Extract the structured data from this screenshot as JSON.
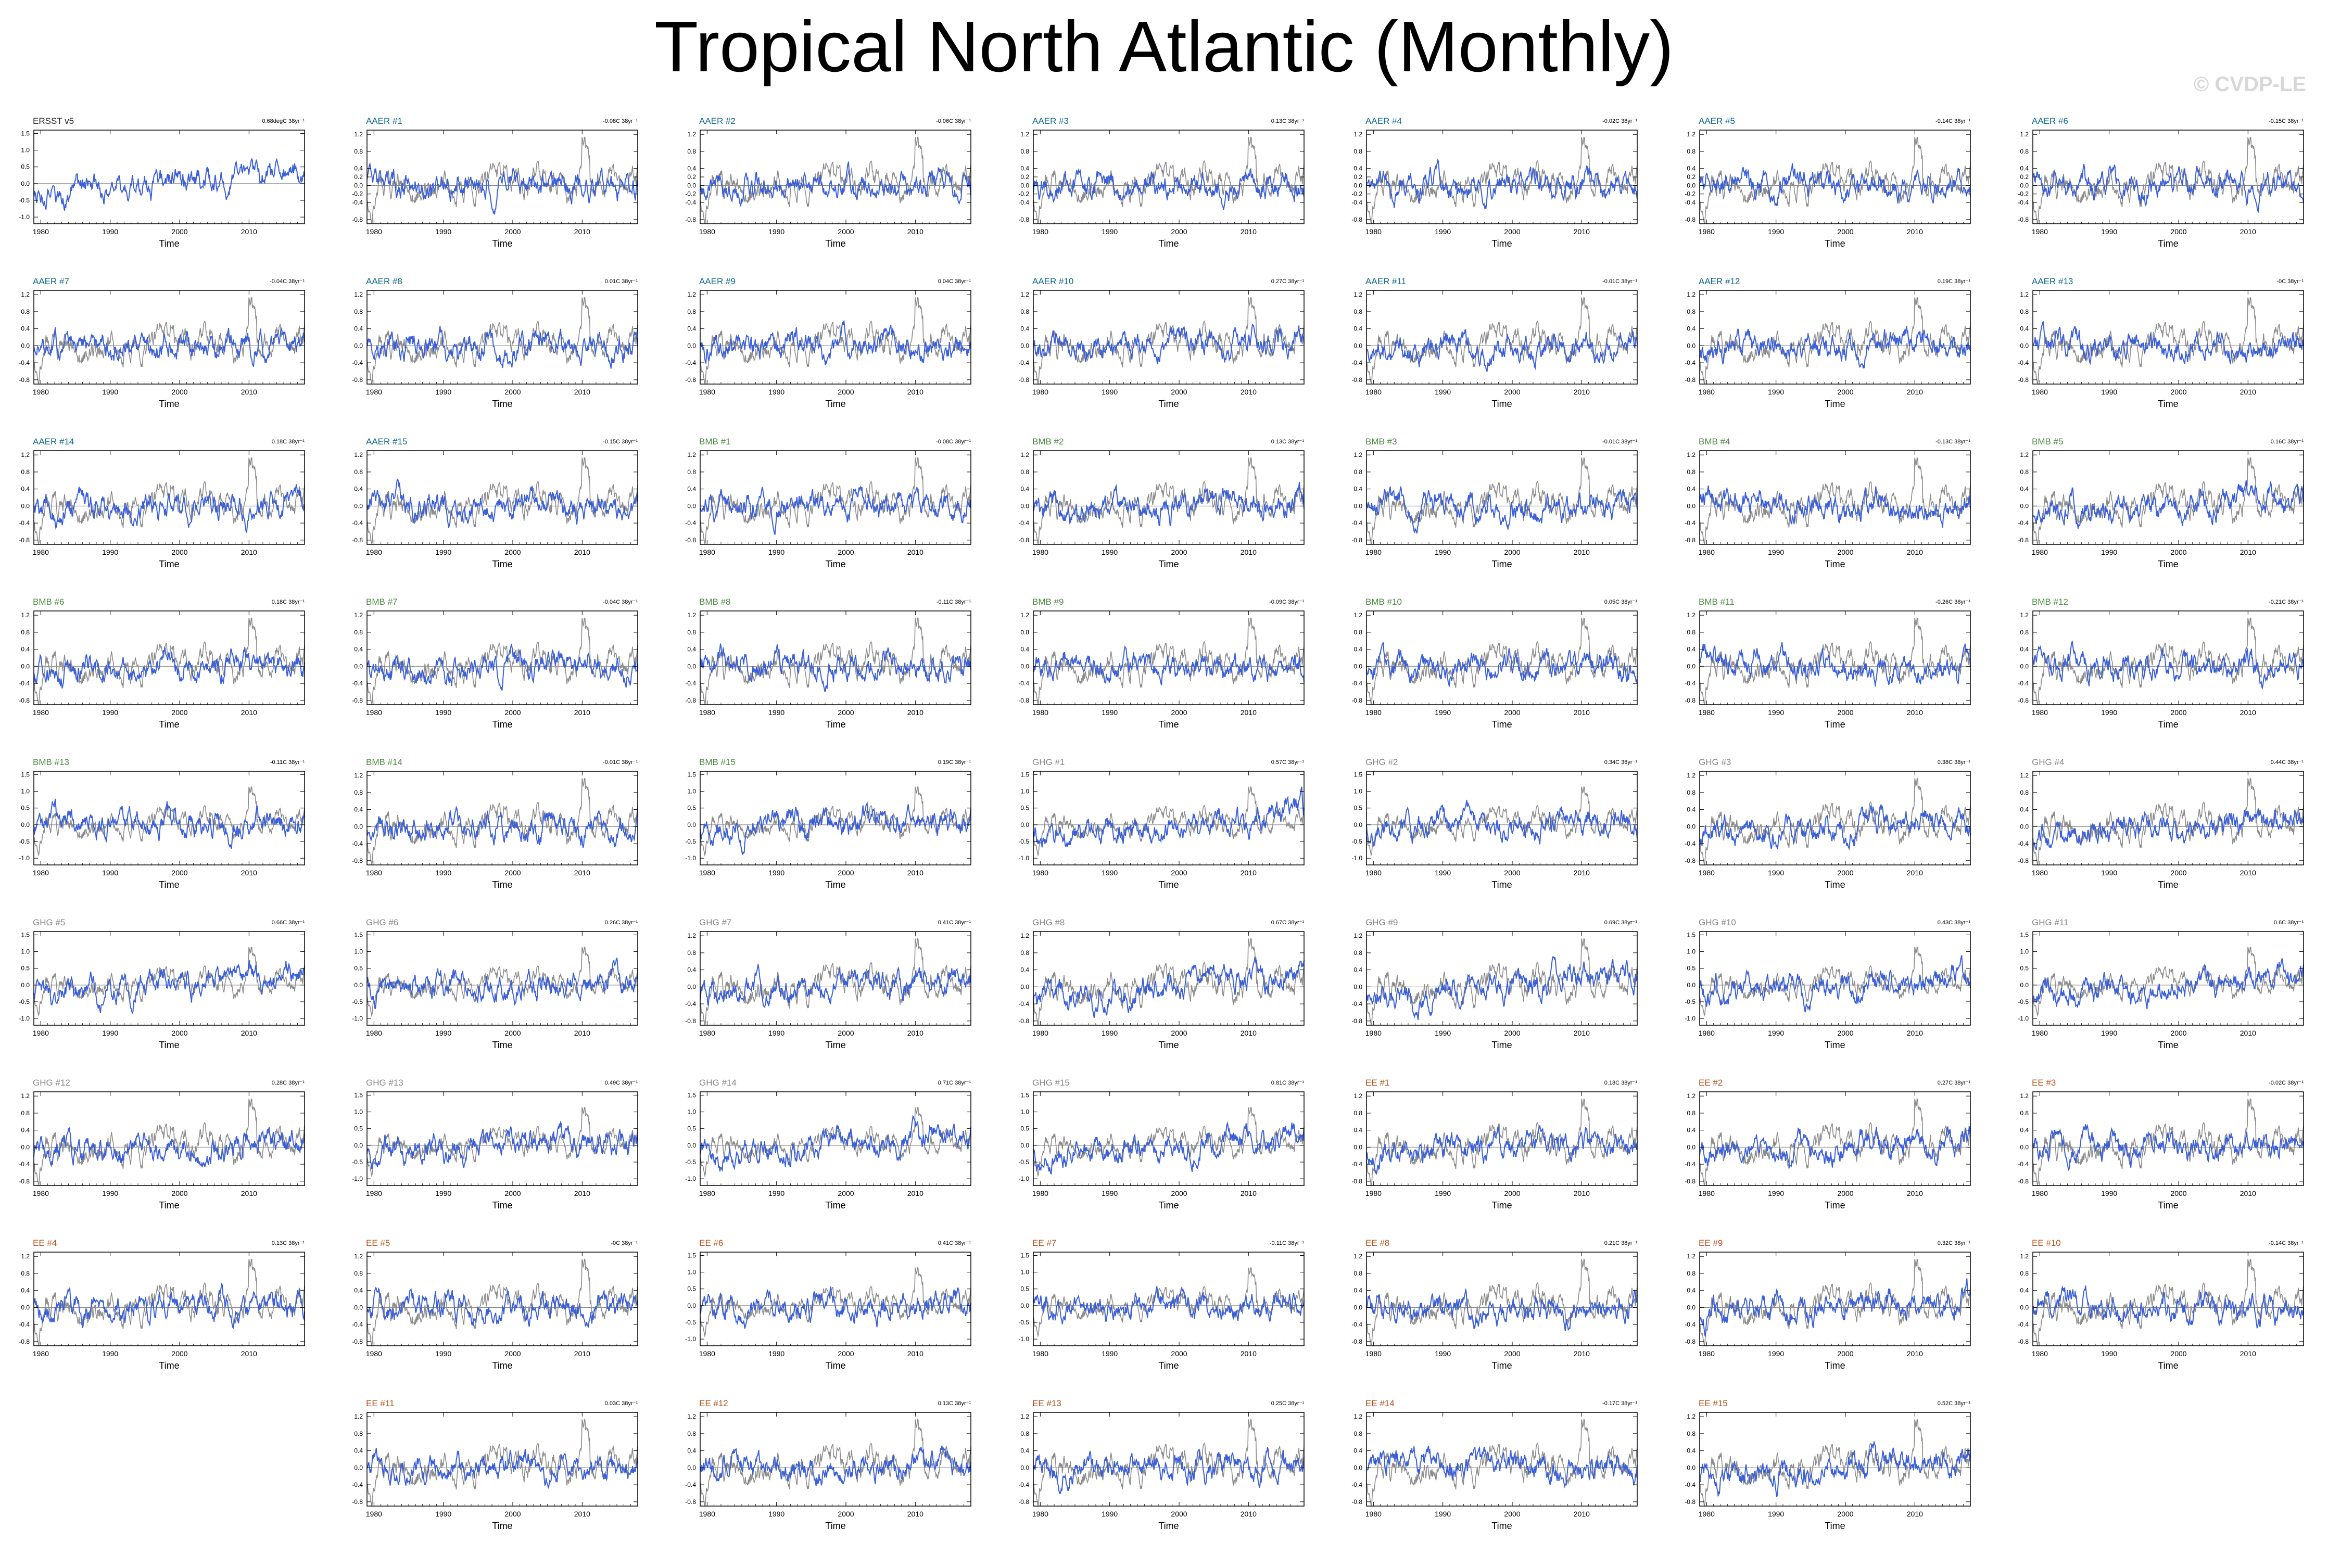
{
  "title": "Tropical North Atlantic (Monthly)",
  "watermark": "© CVDP-LE",
  "colors": {
    "observed": "#222222",
    "ensemble": "#8c8c8c",
    "member": "#3a5fd9",
    "AAER": "#0f6a8f",
    "BMB": "#4f8a45",
    "GHG": "#888888",
    "EE": "#b5501a"
  },
  "chart_data": {
    "type": "line",
    "x_axis": {
      "label": "Time",
      "ticks": [
        "1980",
        "1990",
        "2000",
        "2010"
      ],
      "range": [
        1979,
        2018
      ]
    },
    "note_units": "C 38yr",
    "panels": [
      {
        "name": "ERSST v5",
        "group": "observed",
        "trend": "0.68degC 38yr⁻¹",
        "yticks": [
          "-1.0",
          "-0.5",
          "0.0",
          "0.5",
          "1.0",
          "1.5"
        ],
        "ylim": [
          -1.2,
          1.6
        ],
        "seed": 1
      },
      {
        "name": "AAER #1",
        "group": "AAER",
        "trend": "-0.08C 38yr⁻¹",
        "yticks": [
          "-0.8",
          "-0.4",
          "-0.2",
          "0.0",
          "0.2",
          "0.4",
          "0.8",
          "1.2"
        ],
        "ylim": [
          -0.9,
          1.3
        ],
        "seed": 2
      },
      {
        "name": "AAER #2",
        "group": "AAER",
        "trend": "-0.06C 38yr⁻¹",
        "yticks": [
          "-0.8",
          "-0.4",
          "-0.2",
          "0.0",
          "0.2",
          "0.4",
          "0.8",
          "1.2"
        ],
        "ylim": [
          -0.9,
          1.3
        ],
        "seed": 3
      },
      {
        "name": "AAER #3",
        "group": "AAER",
        "trend": "0.13C 38yr⁻¹",
        "yticks": [
          "-0.8",
          "-0.4",
          "-0.2",
          "0.0",
          "0.2",
          "0.4",
          "0.8",
          "1.2"
        ],
        "ylim": [
          -0.9,
          1.3
        ],
        "seed": 4
      },
      {
        "name": "AAER #4",
        "group": "AAER",
        "trend": "-0.02C 38yr⁻¹",
        "yticks": [
          "-0.8",
          "-0.4",
          "-0.2",
          "0.0",
          "0.2",
          "0.4",
          "0.8",
          "1.2"
        ],
        "ylim": [
          -0.9,
          1.3
        ],
        "seed": 5
      },
      {
        "name": "AAER #5",
        "group": "AAER",
        "trend": "-0.14C 38yr⁻¹",
        "yticks": [
          "-0.8",
          "-0.4",
          "-0.2",
          "0.0",
          "0.2",
          "0.4",
          "0.8",
          "1.2"
        ],
        "ylim": [
          -0.9,
          1.3
        ],
        "seed": 6
      },
      {
        "name": "AAER #6",
        "group": "AAER",
        "trend": "-0.15C 38yr⁻¹",
        "yticks": [
          "-0.8",
          "-0.4",
          "-0.2",
          "0.0",
          "0.2",
          "0.4",
          "0.8",
          "1.2"
        ],
        "ylim": [
          -0.9,
          1.3
        ],
        "seed": 7
      },
      {
        "name": "AAER #7",
        "group": "AAER",
        "trend": "-0.04C 38yr⁻¹",
        "yticks": [
          "-0.8",
          "-0.4",
          "0.0",
          "0.4",
          "0.8",
          "1.2"
        ],
        "ylim": [
          -0.9,
          1.3
        ],
        "seed": 8
      },
      {
        "name": "AAER #8",
        "group": "AAER",
        "trend": "0.01C 38yr⁻¹",
        "yticks": [
          "-0.8",
          "-0.4",
          "0.0",
          "0.4",
          "0.8",
          "1.2"
        ],
        "ylim": [
          -0.9,
          1.3
        ],
        "seed": 9
      },
      {
        "name": "AAER #9",
        "group": "AAER",
        "trend": "0.04C 38yr⁻¹",
        "yticks": [
          "-0.8",
          "-0.4",
          "0.0",
          "0.4",
          "0.8",
          "1.2"
        ],
        "ylim": [
          -0.9,
          1.3
        ],
        "seed": 10
      },
      {
        "name": "AAER #10",
        "group": "AAER",
        "trend": "0.27C 38yr⁻¹",
        "yticks": [
          "-0.8",
          "-0.4",
          "0.0",
          "0.4",
          "0.8",
          "1.2"
        ],
        "ylim": [
          -0.9,
          1.3
        ],
        "seed": 11
      },
      {
        "name": "AAER #11",
        "group": "AAER",
        "trend": "-0.01C 38yr⁻¹",
        "yticks": [
          "-0.8",
          "-0.4",
          "0.0",
          "0.4",
          "0.8",
          "1.2"
        ],
        "ylim": [
          -0.9,
          1.3
        ],
        "seed": 12
      },
      {
        "name": "AAER #12",
        "group": "AAER",
        "trend": "0.19C 38yr⁻¹",
        "yticks": [
          "-0.8",
          "-0.4",
          "0.0",
          "0.4",
          "0.8",
          "1.2"
        ],
        "ylim": [
          -0.9,
          1.3
        ],
        "seed": 13
      },
      {
        "name": "AAER #13",
        "group": "AAER",
        "trend": "-0C 38yr⁻¹",
        "yticks": [
          "-0.8",
          "-0.4",
          "0.0",
          "0.4",
          "0.8",
          "1.2"
        ],
        "ylim": [
          -0.9,
          1.3
        ],
        "seed": 14
      },
      {
        "name": "AAER #14",
        "group": "AAER",
        "trend": "0.18C 38yr⁻¹",
        "yticks": [
          "-0.8",
          "-0.4",
          "0.0",
          "0.4",
          "0.8",
          "1.2"
        ],
        "ylim": [
          -0.9,
          1.3
        ],
        "seed": 15
      },
      {
        "name": "AAER #15",
        "group": "AAER",
        "trend": "-0.15C 38yr⁻¹",
        "yticks": [
          "-0.8",
          "-0.4",
          "0.0",
          "0.4",
          "0.8",
          "1.2"
        ],
        "ylim": [
          -0.9,
          1.3
        ],
        "seed": 16
      },
      {
        "name": "BMB #1",
        "group": "BMB",
        "trend": "-0.08C 38yr⁻¹",
        "yticks": [
          "-0.8",
          "-0.4",
          "0.0",
          "0.4",
          "0.8",
          "1.2"
        ],
        "ylim": [
          -0.9,
          1.3
        ],
        "seed": 17
      },
      {
        "name": "BMB #2",
        "group": "BMB",
        "trend": "0.13C 38yr⁻¹",
        "yticks": [
          "-0.8",
          "-0.4",
          "0.0",
          "0.4",
          "0.8",
          "1.2"
        ],
        "ylim": [
          -0.9,
          1.3
        ],
        "seed": 18
      },
      {
        "name": "BMB #3",
        "group": "BMB",
        "trend": "-0.01C 38yr⁻¹",
        "yticks": [
          "-0.8",
          "-0.4",
          "0.0",
          "0.4",
          "0.8",
          "1.2"
        ],
        "ylim": [
          -0.9,
          1.3
        ],
        "seed": 19
      },
      {
        "name": "BMB #4",
        "group": "BMB",
        "trend": "-0.13C 38yr⁻¹",
        "yticks": [
          "-0.8",
          "-0.4",
          "0.0",
          "0.4",
          "0.8",
          "1.2"
        ],
        "ylim": [
          -0.9,
          1.3
        ],
        "seed": 20
      },
      {
        "name": "BMB #5",
        "group": "BMB",
        "trend": "0.16C 38yr⁻¹",
        "yticks": [
          "-0.8",
          "-0.4",
          "0.0",
          "0.4",
          "0.8",
          "1.2"
        ],
        "ylim": [
          -0.9,
          1.3
        ],
        "seed": 21
      },
      {
        "name": "BMB #6",
        "group": "BMB",
        "trend": "0.18C 38yr⁻¹",
        "yticks": [
          "-0.8",
          "-0.4",
          "0.0",
          "0.4",
          "0.8",
          "1.2"
        ],
        "ylim": [
          -0.9,
          1.3
        ],
        "seed": 22
      },
      {
        "name": "BMB #7",
        "group": "BMB",
        "trend": "-0.04C 38yr⁻¹",
        "yticks": [
          "-0.8",
          "-0.4",
          "0.0",
          "0.4",
          "0.8",
          "1.2"
        ],
        "ylim": [
          -0.9,
          1.3
        ],
        "seed": 23
      },
      {
        "name": "BMB #8",
        "group": "BMB",
        "trend": "-0.11C 38yr⁻¹",
        "yticks": [
          "-0.8",
          "-0.4",
          "0.0",
          "0.4",
          "0.8",
          "1.2"
        ],
        "ylim": [
          -0.9,
          1.3
        ],
        "seed": 24
      },
      {
        "name": "BMB #9",
        "group": "BMB",
        "trend": "-0.09C 38yr⁻¹",
        "yticks": [
          "-0.8",
          "-0.4",
          "0.0",
          "0.4",
          "0.8",
          "1.2"
        ],
        "ylim": [
          -0.9,
          1.3
        ],
        "seed": 25
      },
      {
        "name": "BMB #10",
        "group": "BMB",
        "trend": "0.05C 38yr⁻¹",
        "yticks": [
          "-0.8",
          "-0.4",
          "0.0",
          "0.4",
          "0.8",
          "1.2"
        ],
        "ylim": [
          -0.9,
          1.3
        ],
        "seed": 26
      },
      {
        "name": "BMB #11",
        "group": "BMB",
        "trend": "-0.26C 38yr⁻¹",
        "yticks": [
          "-0.8",
          "-0.4",
          "0.0",
          "0.4",
          "0.8",
          "1.2"
        ],
        "ylim": [
          -0.9,
          1.3
        ],
        "seed": 27
      },
      {
        "name": "BMB #12",
        "group": "BMB",
        "trend": "-0.21C 38yr⁻¹",
        "yticks": [
          "-0.8",
          "-0.4",
          "0.0",
          "0.4",
          "0.8",
          "1.2"
        ],
        "ylim": [
          -0.9,
          1.3
        ],
        "seed": 28
      },
      {
        "name": "BMB #13",
        "group": "BMB",
        "trend": "-0.11C 38yr⁻¹",
        "yticks": [
          "-1.0",
          "-0.5",
          "0.0",
          "0.5",
          "1.0",
          "1.5"
        ],
        "ylim": [
          -1.2,
          1.6
        ],
        "seed": 29
      },
      {
        "name": "BMB #14",
        "group": "BMB",
        "trend": "-0.01C 38yr⁻¹",
        "yticks": [
          "-0.8",
          "-0.4",
          "0.0",
          "0.4",
          "0.8",
          "1.2"
        ],
        "ylim": [
          -0.9,
          1.3
        ],
        "seed": 30
      },
      {
        "name": "BMB #15",
        "group": "BMB",
        "trend": "0.19C 38yr⁻¹",
        "yticks": [
          "-1.0",
          "-0.5",
          "0.0",
          "0.5",
          "1.0",
          "1.5"
        ],
        "ylim": [
          -1.2,
          1.6
        ],
        "seed": 31
      },
      {
        "name": "GHG #1",
        "group": "GHG",
        "trend": "0.57C 38yr⁻¹",
        "yticks": [
          "-1.0",
          "-0.5",
          "0.0",
          "0.5",
          "1.0",
          "1.5"
        ],
        "ylim": [
          -1.2,
          1.6
        ],
        "seed": 32
      },
      {
        "name": "GHG #2",
        "group": "GHG",
        "trend": "0.34C 38yr⁻¹",
        "yticks": [
          "-1.0",
          "-0.5",
          "0.0",
          "0.5",
          "1.0",
          "1.5"
        ],
        "ylim": [
          -1.2,
          1.6
        ],
        "seed": 33
      },
      {
        "name": "GHG #3",
        "group": "GHG",
        "trend": "0.38C 38yr⁻¹",
        "yticks": [
          "-0.8",
          "-0.4",
          "0.0",
          "0.4",
          "0.8",
          "1.2"
        ],
        "ylim": [
          -0.9,
          1.3
        ],
        "seed": 34
      },
      {
        "name": "GHG #4",
        "group": "GHG",
        "trend": "0.44C 38yr⁻¹",
        "yticks": [
          "-0.8",
          "-0.4",
          "0.0",
          "0.4",
          "0.8",
          "1.2"
        ],
        "ylim": [
          -0.9,
          1.3
        ],
        "seed": 35
      },
      {
        "name": "GHG #5",
        "group": "GHG",
        "trend": "0.66C 38yr⁻¹",
        "yticks": [
          "-1.0",
          "-0.5",
          "0.0",
          "0.5",
          "1.0",
          "1.5"
        ],
        "ylim": [
          -1.2,
          1.6
        ],
        "seed": 36
      },
      {
        "name": "GHG #6",
        "group": "GHG",
        "trend": "0.26C 38yr⁻¹",
        "yticks": [
          "-1.0",
          "-0.5",
          "0.0",
          "0.5",
          "1.0",
          "1.5"
        ],
        "ylim": [
          -1.2,
          1.6
        ],
        "seed": 37
      },
      {
        "name": "GHG #7",
        "group": "GHG",
        "trend": "0.41C 38yr⁻¹",
        "yticks": [
          "-0.8",
          "-0.4",
          "0.0",
          "0.4",
          "0.8",
          "1.2"
        ],
        "ylim": [
          -0.9,
          1.3
        ],
        "seed": 38
      },
      {
        "name": "GHG #8",
        "group": "GHG",
        "trend": "0.67C 38yr⁻¹",
        "yticks": [
          "-0.8",
          "-0.4",
          "0.0",
          "0.4",
          "0.8",
          "1.2"
        ],
        "ylim": [
          -0.9,
          1.3
        ],
        "seed": 39
      },
      {
        "name": "GHG #9",
        "group": "GHG",
        "trend": "0.69C 38yr⁻¹",
        "yticks": [
          "-0.8",
          "-0.4",
          "0.0",
          "0.4",
          "0.8",
          "1.2"
        ],
        "ylim": [
          -0.9,
          1.3
        ],
        "seed": 40
      },
      {
        "name": "GHG #10",
        "group": "GHG",
        "trend": "0.43C 38yr⁻¹",
        "yticks": [
          "-1.0",
          "-0.5",
          "0.0",
          "0.5",
          "1.0",
          "1.5"
        ],
        "ylim": [
          -1.2,
          1.6
        ],
        "seed": 41
      },
      {
        "name": "GHG #11",
        "group": "GHG",
        "trend": "0.6C 38yr⁻¹",
        "yticks": [
          "-1.0",
          "-0.5",
          "0.0",
          "0.5",
          "1.0",
          "1.5"
        ],
        "ylim": [
          -1.2,
          1.6
        ],
        "seed": 42
      },
      {
        "name": "GHG #12",
        "group": "GHG",
        "trend": "0.28C 38yr⁻¹",
        "yticks": [
          "-0.8",
          "-0.4",
          "0.0",
          "0.4",
          "0.8",
          "1.2"
        ],
        "ylim": [
          -0.9,
          1.3
        ],
        "seed": 43
      },
      {
        "name": "GHG #13",
        "group": "GHG",
        "trend": "0.49C 38yr⁻¹",
        "yticks": [
          "-1.0",
          "-0.5",
          "0.0",
          "0.5",
          "1.0",
          "1.5"
        ],
        "ylim": [
          -1.2,
          1.6
        ],
        "seed": 44
      },
      {
        "name": "GHG #14",
        "group": "GHG",
        "trend": "0.71C 38yr⁻¹",
        "yticks": [
          "-1.0",
          "-0.5",
          "0.0",
          "0.5",
          "1.0",
          "1.5"
        ],
        "ylim": [
          -1.2,
          1.6
        ],
        "seed": 45
      },
      {
        "name": "GHG #15",
        "group": "GHG",
        "trend": "0.81C 38yr⁻¹",
        "yticks": [
          "-1.0",
          "-0.5",
          "0.0",
          "0.5",
          "1.0",
          "1.5"
        ],
        "ylim": [
          -1.2,
          1.6
        ],
        "seed": 46
      },
      {
        "name": "EE #1",
        "group": "EE",
        "trend": "0.18C 38yr⁻¹",
        "yticks": [
          "-0.8",
          "-0.4",
          "0.0",
          "0.4",
          "0.8",
          "1.2"
        ],
        "ylim": [
          -0.9,
          1.3
        ],
        "seed": 47
      },
      {
        "name": "EE #2",
        "group": "EE",
        "trend": "0.27C 38yr⁻¹",
        "yticks": [
          "-0.8",
          "-0.4",
          "0.0",
          "0.4",
          "0.8",
          "1.2"
        ],
        "ylim": [
          -0.9,
          1.3
        ],
        "seed": 48
      },
      {
        "name": "EE #3",
        "group": "EE",
        "trend": "-0.02C 38yr⁻¹",
        "yticks": [
          "-0.8",
          "-0.4",
          "0.0",
          "0.4",
          "0.8",
          "1.2"
        ],
        "ylim": [
          -0.9,
          1.3
        ],
        "seed": 49
      },
      {
        "name": "EE #4",
        "group": "EE",
        "trend": "0.13C 38yr⁻¹",
        "yticks": [
          "-0.8",
          "-0.4",
          "0.0",
          "0.4",
          "0.8",
          "1.2"
        ],
        "ylim": [
          -0.9,
          1.3
        ],
        "seed": 50
      },
      {
        "name": "EE #5",
        "group": "EE",
        "trend": "-0C 38yr⁻¹",
        "yticks": [
          "-0.8",
          "-0.4",
          "0.0",
          "0.4",
          "0.8",
          "1.2"
        ],
        "ylim": [
          -0.9,
          1.3
        ],
        "seed": 51
      },
      {
        "name": "EE #6",
        "group": "EE",
        "trend": "0.41C 38yr⁻¹",
        "yticks": [
          "-1.0",
          "-0.5",
          "0.0",
          "0.5",
          "1.0",
          "1.5"
        ],
        "ylim": [
          -1.2,
          1.6
        ],
        "seed": 52
      },
      {
        "name": "EE #7",
        "group": "EE",
        "trend": "-0.11C 38yr⁻¹",
        "yticks": [
          "-1.0",
          "-0.5",
          "0.0",
          "0.5",
          "1.0",
          "1.5"
        ],
        "ylim": [
          -1.2,
          1.6
        ],
        "seed": 53
      },
      {
        "name": "EE #8",
        "group": "EE",
        "trend": "0.21C 38yr⁻¹",
        "yticks": [
          "-0.8",
          "-0.4",
          "0.0",
          "0.4",
          "0.8",
          "1.2"
        ],
        "ylim": [
          -0.9,
          1.3
        ],
        "seed": 54
      },
      {
        "name": "EE #9",
        "group": "EE",
        "trend": "0.32C 38yr⁻¹",
        "yticks": [
          "-0.8",
          "-0.4",
          "0.0",
          "0.4",
          "0.8",
          "1.2"
        ],
        "ylim": [
          -0.9,
          1.3
        ],
        "seed": 55
      },
      {
        "name": "EE #10",
        "group": "EE",
        "trend": "-0.14C 38yr⁻¹",
        "yticks": [
          "-0.8",
          "-0.4",
          "0.0",
          "0.4",
          "0.8",
          "1.2"
        ],
        "ylim": [
          -0.9,
          1.3
        ],
        "seed": 56
      },
      {
        "name": "EE #11",
        "group": "EE",
        "trend": "0.03C 38yr⁻¹",
        "yticks": [
          "-0.8",
          "-0.4",
          "0.0",
          "0.4",
          "0.8",
          "1.2"
        ],
        "ylim": [
          -0.9,
          1.3
        ],
        "seed": 57
      },
      {
        "name": "EE #12",
        "group": "EE",
        "trend": "0.13C 38yr⁻¹",
        "yticks": [
          "-0.8",
          "-0.4",
          "0.0",
          "0.4",
          "0.8",
          "1.2"
        ],
        "ylim": [
          -0.9,
          1.3
        ],
        "seed": 58
      },
      {
        "name": "EE #13",
        "group": "EE",
        "trend": "0.25C 38yr⁻¹",
        "yticks": [
          "-0.8",
          "-0.4",
          "0.0",
          "0.4",
          "0.8",
          "1.2"
        ],
        "ylim": [
          -0.9,
          1.3
        ],
        "seed": 59
      },
      {
        "name": "EE #14",
        "group": "EE",
        "trend": "-0.17C 38yr⁻¹",
        "yticks": [
          "-0.8",
          "-0.4",
          "0.0",
          "0.4",
          "0.8",
          "1.2"
        ],
        "ylim": [
          -0.9,
          1.3
        ],
        "seed": 60
      },
      {
        "name": "EE #15",
        "group": "EE",
        "trend": "0.52C 38yr⁻¹",
        "yticks": [
          "-0.8",
          "-0.4",
          "0.0",
          "0.4",
          "0.8",
          "1.2"
        ],
        "ylim": [
          -0.9,
          1.3
        ],
        "seed": 61
      }
    ]
  }
}
